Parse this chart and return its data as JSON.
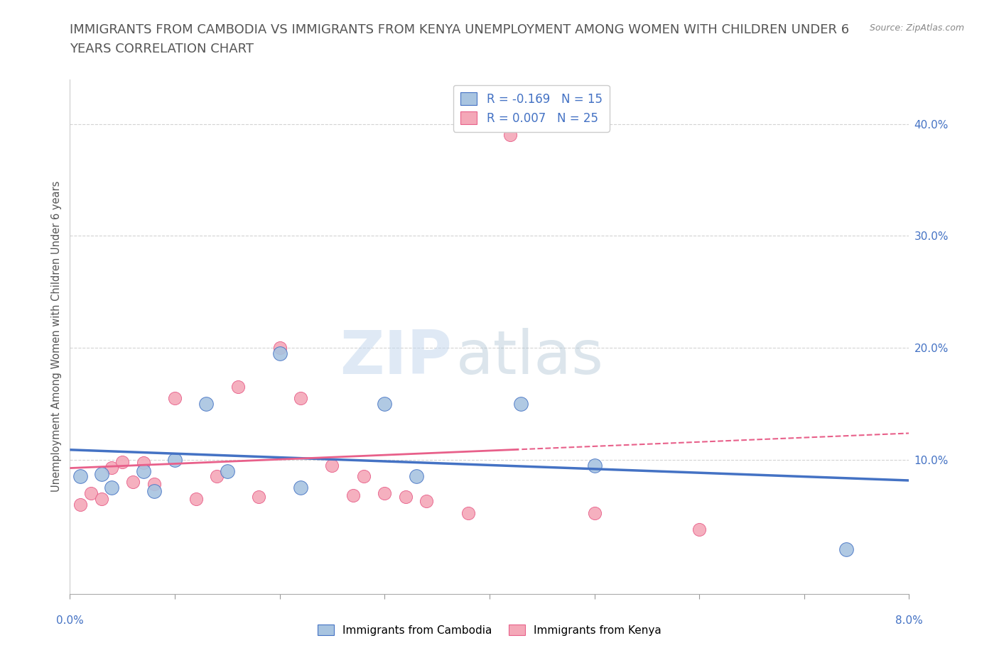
{
  "title_line1": "IMMIGRANTS FROM CAMBODIA VS IMMIGRANTS FROM KENYA UNEMPLOYMENT AMONG WOMEN WITH CHILDREN UNDER 6",
  "title_line2": "YEARS CORRELATION CHART",
  "source": "Source: ZipAtlas.com",
  "ylabel": "Unemployment Among Women with Children Under 6 years",
  "xlim": [
    0.0,
    0.08
  ],
  "ylim": [
    -0.02,
    0.44
  ],
  "watermark_zip": "ZIP",
  "watermark_atlas": "atlas",
  "legend_label1": "R = -0.169   N = 15",
  "legend_label2": "R = 0.007   N = 25",
  "cambodia_color": "#a8c4e0",
  "kenya_color": "#f4a8b8",
  "line_cambodia_color": "#4472c4",
  "line_kenya_color": "#e8608a",
  "background_color": "#ffffff",
  "grid_color": "#c8c8c8",
  "title_color": "#555555",
  "axis_label_color": "#4472c4",
  "ytick_pos": [
    0.1,
    0.2,
    0.3,
    0.4
  ],
  "ytick_labels": [
    "10.0%",
    "20.0%",
    "30.0%",
    "40.0%"
  ],
  "cambodia_x": [
    0.001,
    0.003,
    0.004,
    0.007,
    0.008,
    0.01,
    0.013,
    0.015,
    0.02,
    0.022,
    0.03,
    0.033,
    0.043,
    0.05,
    0.074
  ],
  "cambodia_y": [
    0.085,
    0.087,
    0.075,
    0.09,
    0.072,
    0.1,
    0.15,
    0.09,
    0.195,
    0.075,
    0.15,
    0.085,
    0.15,
    0.095,
    0.02
  ],
  "kenya_x": [
    0.001,
    0.002,
    0.003,
    0.004,
    0.005,
    0.006,
    0.007,
    0.008,
    0.01,
    0.012,
    0.014,
    0.016,
    0.018,
    0.02,
    0.022,
    0.025,
    0.027,
    0.028,
    0.03,
    0.032,
    0.034,
    0.038,
    0.042,
    0.05,
    0.06
  ],
  "kenya_y": [
    0.06,
    0.07,
    0.065,
    0.093,
    0.098,
    0.08,
    0.097,
    0.078,
    0.155,
    0.065,
    0.085,
    0.165,
    0.067,
    0.2,
    0.155,
    0.095,
    0.068,
    0.085,
    0.07,
    0.067,
    0.063,
    0.052,
    0.39,
    0.052,
    0.038
  ],
  "marker_size_cambodia": 200,
  "marker_size_kenya": 170
}
